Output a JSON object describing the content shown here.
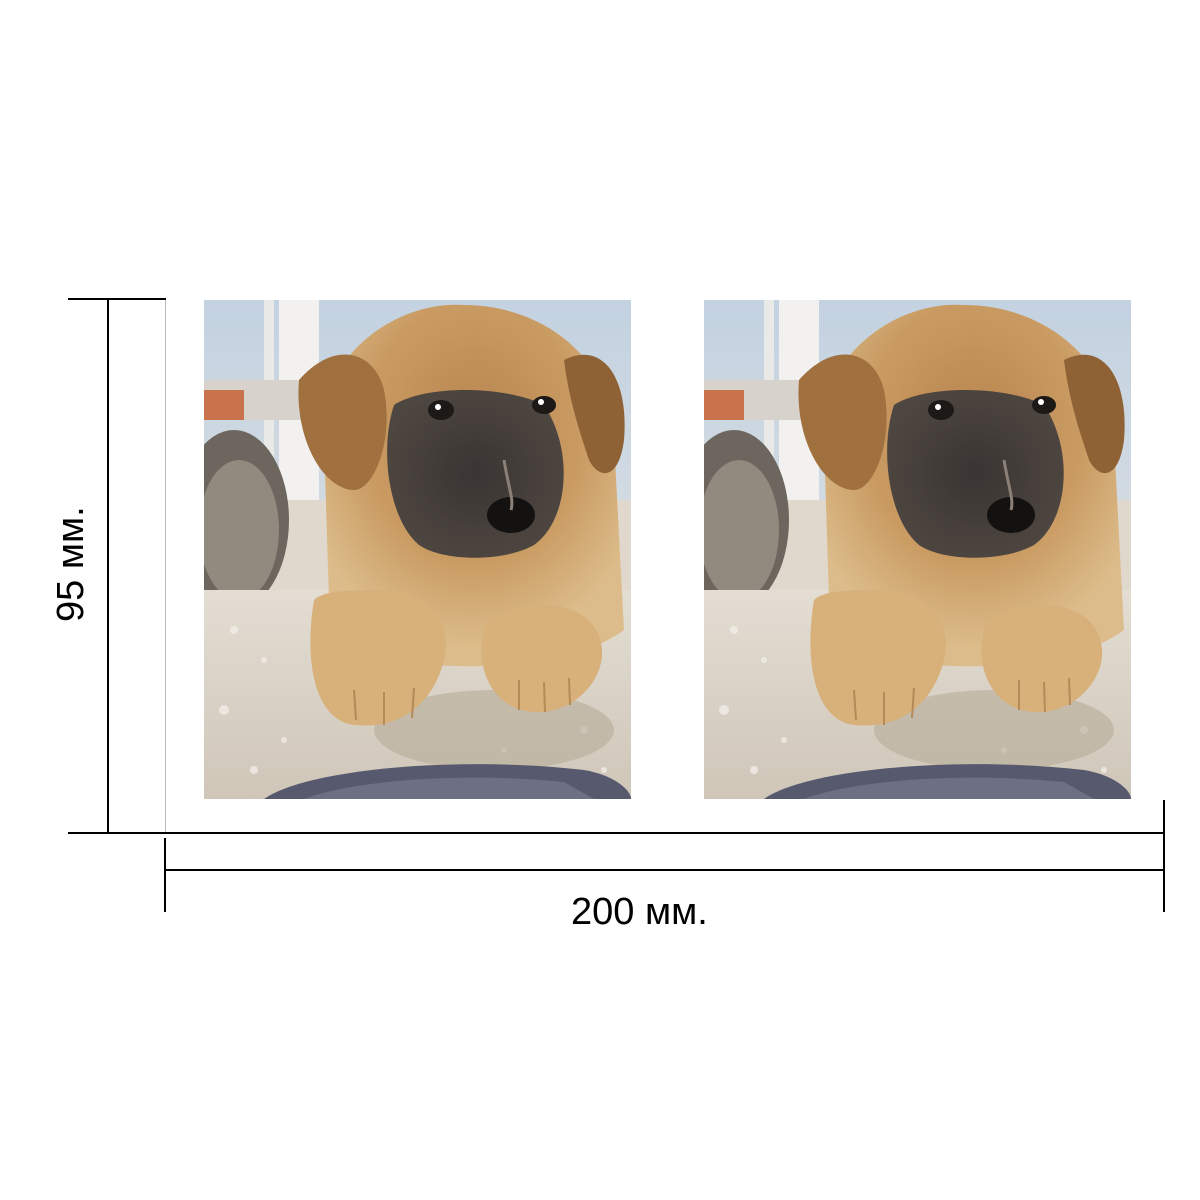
{
  "dimensions": {
    "height_label": "95 мм.",
    "width_label": "200 мм."
  },
  "panels": [
    {
      "subject": "puppy-photo"
    },
    {
      "subject": "puppy-photo"
    }
  ],
  "colors": {
    "line": "#000000",
    "background": "#ffffff",
    "fur_tan": "#c9985e",
    "muzzle_dark": "#2e2b2a",
    "gravel": "#d8d2c8",
    "sky": "#c9d6e3"
  }
}
